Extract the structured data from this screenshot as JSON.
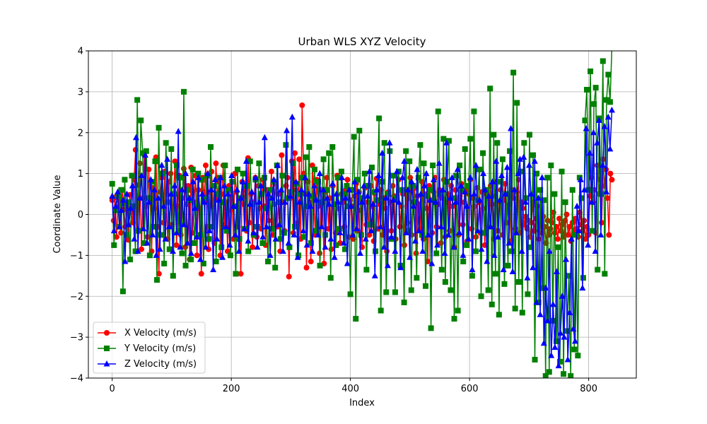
{
  "chart_data": {
    "type": "line",
    "title": "Urban WLS XYZ Velocity",
    "xlabel": "Index",
    "ylabel": "Coordinate Value",
    "xlim": [
      -40,
      880
    ],
    "ylim": [
      -4,
      4
    ],
    "xticks": [
      0,
      200,
      400,
      600,
      800
    ],
    "yticks": [
      -4,
      -3,
      -2,
      -1,
      0,
      1,
      2,
      3,
      4
    ],
    "xtick_labels": [
      "0",
      "200",
      "400",
      "600",
      "800"
    ],
    "ytick_labels": [
      "−4",
      "−3",
      "−2",
      "−1",
      "0",
      "1",
      "2",
      "3",
      "4"
    ],
    "grid": true,
    "legend_position": "lower-left",
    "x_start": 0,
    "x_end": 839,
    "series": [
      {
        "name": "X Velocity (m/s)",
        "color": "#ff0000",
        "marker": "circle",
        "values": [
          0.35,
          -0.15,
          0.42,
          -0.55,
          0.18,
          0.32,
          -0.45,
          0.6,
          0.12,
          -0.3,
          0.25,
          -0.62,
          0.48,
          0.05,
          -0.2,
          0.85,
          1.58,
          -0.4,
          0.72,
          1.25,
          -0.85,
          0.4,
          1.45,
          0.2,
          -0.55,
          1.1,
          0.35,
          -0.9,
          0.65,
          0.15,
          1.4,
          -0.3,
          -1.45,
          0.55,
          0.9,
          -0.2,
          1.05,
          0.3,
          -0.6,
          0.8,
          1.0,
          -0.25,
          0.5,
          1.3,
          -0.75,
          0.2,
          0.95,
          -0.5,
          0.4,
          1.12,
          -0.8,
          0.25,
          0.7,
          -1.1,
          1.15,
          -0.45,
          0.3,
          0.95,
          -1.0,
          0.6,
          0.15,
          -1.45,
          0.9,
          0.35,
          1.2,
          -0.3,
          -0.85,
          0.55,
          1.05,
          0.2,
          -0.7,
          1.25,
          0.4,
          0.8,
          -1.0,
          0.5,
          1.2,
          -0.25,
          0.3,
          -0.9,
          0.7,
          0.1,
          0.45,
          -0.6,
          1.0,
          0.55,
          -0.3,
          0.35,
          -1.45,
          0.8,
          0.25,
          0.6,
          -0.4,
          1.38,
          -0.2,
          0.5,
          -0.8,
          0.3,
          0.9,
          -0.55,
          0.7,
          0.15,
          -0.35,
          0.85,
          0.2,
          -0.75,
          0.6,
          -0.15,
          0.4,
          1.05,
          -0.5,
          0.25,
          0.75,
          -0.3,
          0.5,
          -0.9,
          1.45,
          0.3,
          -0.4,
          0.7,
          0.9,
          -1.52,
          0.4,
          1.3,
          -0.45,
          1.5,
          0.6,
          -0.2,
          1.35,
          -0.6,
          2.67,
          1.0,
          0.5,
          -1.3,
          0.8,
          0.3,
          -1.15,
          1.2,
          0.4,
          -0.5,
          0.85,
          0.2,
          -0.95,
          0.6,
          0.3,
          -1.2,
          0.55,
          0.9,
          -0.35,
          0.4,
          -0.85,
          0.7,
          0.25,
          -0.45,
          0.95,
          0.15,
          -0.7,
          0.5,
          0.3,
          -0.3,
          0.6,
          0.85,
          -0.55,
          0.35,
          0.2,
          -0.6,
          0.45,
          0.75,
          -0.4,
          0.55,
          0.1,
          -0.8,
          0.4,
          0.65,
          -0.25,
          0.3,
          -0.5,
          0.7,
          0.2,
          -0.65,
          0.5,
          0.88,
          -0.35,
          0.25,
          0.6,
          -0.5,
          0.4,
          0.15,
          -0.9,
          0.55,
          0.3,
          -0.4,
          0.7,
          0.45,
          -0.6,
          0.35,
          0.85,
          -0.3,
          0.2,
          0.5,
          -0.75,
          0.6,
          -0.2,
          0.4,
          0.9,
          -0.5,
          0.3,
          0.65,
          -0.95,
          0.45,
          0.25,
          -0.35,
          0.8,
          -0.6,
          0.5,
          0.15,
          -1.15,
          0.7,
          0.35,
          -0.45,
          0.55,
          0.9,
          -0.3,
          0.25,
          0.6,
          -0.7,
          0.4,
          0.85,
          -0.55,
          0.3,
          0.5,
          -0.4,
          0.7,
          0.2,
          -0.8,
          0.6,
          0.35,
          -0.5,
          0.45,
          0.75,
          -0.25,
          0.3,
          0.6,
          -0.65,
          0.5,
          0.85,
          -0.35,
          0.4,
          0.2,
          -0.55,
          0.65,
          0.3,
          -0.45,
          0.55,
          0.15,
          -0.75,
          0.5,
          0.4,
          -0.3,
          0.7,
          0.25,
          -0.6,
          0.45,
          0.8,
          -0.4,
          0.3,
          0.6,
          -0.5,
          0.35,
          0.75,
          -0.2,
          0.5,
          0.25,
          -0.65,
          0.6,
          0.4,
          -0.35,
          0.55,
          0.85,
          -0.45,
          0.3,
          0.15,
          -0.25,
          -0.05,
          -0.35,
          -0.15,
          -0.55,
          -0.2,
          0.3,
          -0.4,
          -0.1,
          0.2,
          -0.6,
          -0.25,
          -0.45,
          -0.05,
          -0.3,
          -0.7,
          -0.15,
          -0.5,
          -0.35,
          -0.2,
          0.05,
          -0.45,
          -0.3,
          -0.6,
          -0.1,
          -0.4,
          -0.25,
          -0.55,
          -0.15,
          0.0,
          -0.5,
          -0.3,
          -0.65,
          -0.2,
          -0.45,
          -0.1,
          -0.35,
          -0.55,
          0.05,
          -0.25,
          -0.4,
          -0.15,
          -0.6,
          -0.3,
          -0.5,
          0.45,
          0.9,
          0.3,
          0.6,
          -0.45,
          1.2,
          0.5,
          0.85,
          -0.2,
          1.35,
          0.7,
          1.1,
          0.4,
          -0.5,
          1.0,
          0.85
        ]
      },
      {
        "name": "Y Velocity (m/s)",
        "color": "#008000",
        "marker": "square",
        "values": [
          0.75,
          -0.75,
          0.1,
          0.45,
          -0.3,
          0.6,
          -1.88,
          0.85,
          -0.5,
          0.3,
          -1.1,
          0.95,
          0.2,
          -0.9,
          2.8,
          -0.4,
          2.3,
          1.5,
          -0.7,
          1.55,
          0.4,
          -1.0,
          0.8,
          -0.3,
          1.3,
          -1.6,
          2.12,
          -0.5,
          1.0,
          -1.2,
          1.75,
          0.3,
          -0.85,
          1.6,
          -1.5,
          0.5,
          1.2,
          -0.4,
          0.9,
          -0.95,
          3.0,
          -1.25,
          0.6,
          0.35,
          -1.1,
          1.1,
          -0.7,
          0.2,
          1.0,
          -0.5,
          0.85,
          -1.2,
          0.4,
          0.95,
          -0.6,
          1.65,
          -0.3,
          0.7,
          -1.15,
          0.5,
          0.9,
          -0.8,
          0.3,
          1.2,
          -0.4,
          0.6,
          -1.0,
          0.8,
          0.2,
          -1.45,
          1.1,
          -0.6,
          0.4,
          1.0,
          -0.35,
          0.7,
          -0.9,
          1.3,
          0.25,
          -0.5,
          0.85,
          -0.3,
          1.25,
          0.5,
          -0.7,
          0.9,
          0.15,
          -1.15,
          0.6,
          -0.35,
          0.8,
          -1.3,
          1.2,
          0.3,
          -0.6,
          0.95,
          -0.45,
          1.7,
          0.4,
          -0.8,
          0.55,
          1.25,
          -0.3,
          0.75,
          -1.0,
          0.5,
          0.9,
          -0.55,
          1.4,
          0.2,
          1.65,
          -0.7,
          0.45,
          1.1,
          -0.4,
          0.8,
          -1.25,
          0.3,
          1.35,
          -0.5,
          0.6,
          1.5,
          -1.55,
          1.65,
          0.25,
          -0.75,
          0.9,
          -0.35,
          1.05,
          0.5,
          -0.85,
          0.7,
          0.2,
          -1.95,
          0.6,
          1.9,
          -2.55,
          0.85,
          2.05,
          -0.5,
          0.4,
          1.0,
          -1.35,
          0.7,
          -0.25,
          1.15,
          0.55,
          -0.9,
          0.35,
          2.35,
          -2.35,
          0.8,
          1.75,
          -1.9,
          0.5,
          1.55,
          -0.6,
          0.95,
          -1.9,
          0.4,
          1.05,
          -1.25,
          0.6,
          -2.15,
          1.55,
          -0.4,
          1.3,
          -1.85,
          0.7,
          0.3,
          -1.55,
          0.9,
          1.7,
          -0.5,
          1.25,
          -1.75,
          0.45,
          0.6,
          -2.78,
          1.2,
          0.3,
          -0.95,
          2.52,
          0.5,
          -1.35,
          1.85,
          -1.65,
          0.8,
          1.8,
          -1.85,
          0.4,
          -2.55,
          0.95,
          -2.35,
          1.2,
          0.6,
          -1.15,
          1.6,
          -0.75,
          0.7,
          1.85,
          -1.5,
          2.52,
          -0.9,
          0.35,
          1.1,
          -2.0,
          1.5,
          -0.45,
          0.6,
          -1.85,
          3.08,
          -2.2,
          1.95,
          -1.45,
          1.75,
          -2.45,
          0.8,
          1.35,
          -1.7,
          0.5,
          -1.25,
          1.55,
          -0.9,
          3.47,
          -2.3,
          2.73,
          -1.65,
          1.05,
          -2.4,
          1.75,
          0.4,
          -1.95,
          1.95,
          -0.8,
          1.45,
          -3.55,
          1.0,
          -2.15,
          0.6,
          -1.8,
          0.35,
          -3.95,
          0.9,
          -3.85,
          1.2,
          -2.6,
          0.5,
          -3.1,
          -0.8,
          -3.6,
          1.05,
          -3.9,
          0.3,
          -2.85,
          -1.5,
          -3.95,
          0.6,
          -3.3,
          -0.5,
          -3.45,
          0.9,
          0.4,
          -1.55,
          2.3,
          3.05,
          0.6,
          3.5,
          -0.4,
          2.7,
          3.1,
          -1.35,
          2.35,
          0.5,
          3.75,
          -1.45,
          2.8,
          3.42,
          2.75,
          4.1
        ]
      },
      {
        "name": "Z Velocity (m/s)",
        "color": "#0000ff",
        "marker": "triangle",
        "values": [
          0.45,
          -0.4,
          0.2,
          0.55,
          -0.3,
          0.1,
          0.35,
          -1.15,
          0.5,
          -0.25,
          0.15,
          0.7,
          -0.6,
          1.88,
          -0.9,
          0.4,
          0.95,
          -0.35,
          1.45,
          -0.7,
          0.3,
          0.85,
          -0.5,
          0.6,
          -1.0,
          0.4,
          -0.85,
          1.2,
          0.2,
          -0.6,
          1.35,
          -0.3,
          0.5,
          -0.9,
          0.7,
          -0.45,
          2.03,
          -0.8,
          0.6,
          -0.25,
          1.0,
          -0.7,
          0.4,
          -0.95,
          0.8,
          0.15,
          -0.55,
          0.9,
          -1.1,
          0.5,
          0.3,
          -0.8,
          1.0,
          -0.4,
          0.6,
          -1.35,
          0.85,
          -0.6,
          0.35,
          0.9,
          -1.05,
          0.7,
          -0.3,
          0.5,
          -0.75,
          0.95,
          0.2,
          -0.5,
          0.6,
          -0.9,
          0.4,
          0.8,
          -0.35,
          1.3,
          -0.65,
          0.25,
          0.55,
          -0.45,
          0.9,
          -0.8,
          0.3,
          0.7,
          -0.55,
          1.88,
          -0.3,
          0.5,
          -1.0,
          0.4,
          0.85,
          -0.6,
          1.2,
          -0.25,
          0.6,
          -0.9,
          0.3,
          2.05,
          -0.7,
          0.45,
          2.38,
          -0.5,
          0.8,
          -1.05,
          0.3,
          0.6,
          -0.4,
          0.9,
          -0.75,
          0.5,
          0.2,
          -0.9,
          0.7,
          0.35,
          -0.5,
          1.0,
          -0.3,
          0.6,
          -0.8,
          0.4,
          0.25,
          -0.6,
          0.75,
          -1.05,
          0.5,
          0.3,
          -0.45,
          0.9,
          -0.7,
          0.4,
          -1.2,
          0.6,
          0.2,
          -0.5,
          0.8,
          -0.35,
          0.55,
          -0.95,
          0.3,
          0.7,
          -0.6,
          0.45,
          1.05,
          -0.4,
          0.25,
          -1.5,
          0.6,
          0.95,
          -0.3,
          1.5,
          -0.8,
          0.4,
          -1.25,
          1.75,
          -0.55,
          0.35,
          -0.9,
          1.05,
          0.3,
          -1.3,
          0.9,
          1.3,
          -0.45,
          0.6,
          -1.05,
          0.8,
          0.2,
          -0.65,
          1.1,
          -0.4,
          0.5,
          -0.9,
          0.7,
          1.0,
          -0.5,
          0.35,
          -1.2,
          0.85,
          0.3,
          -0.75,
          1.25,
          -0.3,
          0.6,
          -0.95,
          1.75,
          -0.5,
          0.4,
          0.9,
          -0.8,
          0.3,
          1.1,
          -0.45,
          0.7,
          -1.0,
          0.55,
          0.2,
          -0.6,
          0.9,
          -1.35,
          0.5,
          1.2,
          -0.4,
          0.35,
          -0.85,
          1.0,
          0.6,
          -1.15,
          0.45,
          -0.3,
          0.8,
          -1.0,
          1.3,
          -0.55,
          0.35,
          0.95,
          -1.35,
          0.5,
          1.15,
          -0.7,
          2.1,
          -1.4,
          0.6,
          -0.45,
          1.0,
          1.35,
          -0.9,
          1.4,
          0.3,
          -1.55,
          1.2,
          0.5,
          -1.3,
          1.3,
          -2.15,
          0.4,
          -2.45,
          0.9,
          -3.15,
          -1.8,
          -2.6,
          -0.9,
          -3.45,
          -2.2,
          -3.25,
          -1.4,
          -3.7,
          -2.9,
          -2.0,
          -3.0,
          -1.1,
          -3.55,
          -2.4,
          -0.6,
          -2.8,
          -3.1,
          0.2,
          -0.4,
          0.85,
          -1.8,
          0.6,
          2.1,
          -0.75,
          1.5,
          0.3,
          2.0,
          -0.9,
          1.75,
          2.3,
          -0.5,
          1.2,
          2.15,
          0.55,
          2.38,
          1.6,
          2.55
        ]
      }
    ]
  }
}
